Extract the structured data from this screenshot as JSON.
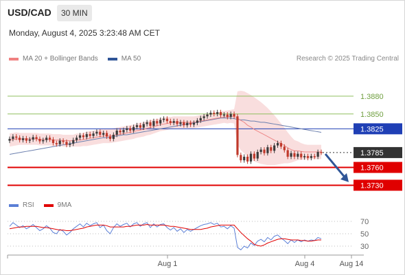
{
  "header": {
    "pair": "USD/CAD",
    "timeframe": "30 MIN"
  },
  "timestamp": "Monday, August 4, 2025 3:23:48 AM CET",
  "legend": {
    "items": [
      {
        "label": "MA 20 + Bollinger Bands",
        "color": "#f08080"
      },
      {
        "label": "MA 50",
        "color": "#2f5597"
      }
    ],
    "credit": "Research © 2025 Trading Central"
  },
  "rsi_legend": {
    "items": [
      {
        "label": "RSI",
        "color": "#5b7fd6"
      },
      {
        "label": "9MA",
        "color": "#e00000"
      }
    ]
  },
  "chart_data": [
    {
      "type": "line",
      "name": "price",
      "x_ticks": [
        "Aug 1",
        "Aug 4",
        "Aug 14"
      ],
      "ylim": [
        1.3712,
        1.3896
      ],
      "levels": [
        {
          "value": 1.388,
          "label": "1.3880",
          "kind": "resistance-green",
          "color": "#8fbf5f"
        },
        {
          "value": 1.385,
          "label": "1.3850",
          "kind": "resistance-green",
          "color": "#8fbf5f"
        },
        {
          "value": 1.3825,
          "label": "1.3825",
          "kind": "pivot",
          "color": "#1f3fb5"
        },
        {
          "value": 1.3785,
          "label": "1.3785",
          "kind": "last-price",
          "color": "#333333"
        },
        {
          "value": 1.376,
          "label": "1.3760",
          "kind": "support",
          "color": "#e00000"
        },
        {
          "value": 1.373,
          "label": "1.3730",
          "kind": "support",
          "color": "#e00000"
        }
      ],
      "close": [
        1.3808,
        1.3812,
        1.381,
        1.3806,
        1.3809,
        1.3805,
        1.3807,
        1.3811,
        1.3808,
        1.3804,
        1.3806,
        1.381,
        1.3807,
        1.3801,
        1.3799,
        1.3805,
        1.3803,
        1.3798,
        1.38,
        1.3806,
        1.381,
        1.3814,
        1.3811,
        1.3816,
        1.3813,
        1.3817,
        1.382,
        1.3815,
        1.3818,
        1.3812,
        1.3808,
        1.3815,
        1.3822,
        1.3819,
        1.3823,
        1.3826,
        1.3822,
        1.3828,
        1.3831,
        1.3827,
        1.3833,
        1.3836,
        1.383,
        1.3838,
        1.3834,
        1.384,
        1.3842,
        1.3838,
        1.3835,
        1.3838,
        1.3833,
        1.3836,
        1.3831,
        1.3835,
        1.3832,
        1.3835,
        1.3839,
        1.3843,
        1.3846,
        1.3849,
        1.3852,
        1.385,
        1.3853,
        1.3848,
        1.3849,
        1.3845,
        1.385,
        1.3846,
        1.3781,
        1.3772,
        1.3778,
        1.377,
        1.3783,
        1.3775,
        1.3786,
        1.379,
        1.3784,
        1.3794,
        1.3788,
        1.3797,
        1.3801,
        1.3795,
        1.3789,
        1.3778,
        1.3784,
        1.3778,
        1.3783,
        1.3777,
        1.3779,
        1.3776,
        1.3779,
        1.3778,
        1.3786,
        1.3785
      ],
      "ma20": [
        1.3806,
        1.3807,
        1.3808,
        1.3808,
        1.3808,
        1.3808,
        1.3808,
        1.3808,
        1.3808,
        1.3807,
        1.3807,
        1.3807,
        1.3807,
        1.3806,
        1.3806,
        1.3806,
        1.3805,
        1.3805,
        1.3805,
        1.3805,
        1.3806,
        1.3806,
        1.3807,
        1.3808,
        1.3809,
        1.381,
        1.3811,
        1.3812,
        1.3813,
        1.3813,
        1.3813,
        1.3814,
        1.3815,
        1.3816,
        1.3817,
        1.3818,
        1.3819,
        1.382,
        1.3822,
        1.3823,
        1.3824,
        1.3826,
        1.3827,
        1.3829,
        1.383,
        1.3832,
        1.3833,
        1.3834,
        1.3835,
        1.3836,
        1.3836,
        1.3836,
        1.3836,
        1.3836,
        1.3836,
        1.3836,
        1.3837,
        1.3838,
        1.3839,
        1.384,
        1.3841,
        1.3842,
        1.3843,
        1.3844,
        1.3845,
        1.3845,
        1.3846,
        1.3846,
        1.3843,
        1.3839,
        1.3836,
        1.3831,
        1.3828,
        1.3824,
        1.3821,
        1.3818,
        1.3815,
        1.3812,
        1.3809,
        1.3806,
        1.3803,
        1.38,
        1.3797,
        1.3793,
        1.379,
        1.3788,
        1.3788,
        1.3787,
        1.3786,
        1.3786,
        1.3786,
        1.3786,
        1.3786,
        1.3786
      ],
      "ma50": [
        1.3782,
        1.3783,
        1.3784,
        1.3785,
        1.3786,
        1.3787,
        1.3788,
        1.3789,
        1.379,
        1.3791,
        1.3792,
        1.3793,
        1.3794,
        1.3795,
        1.3796,
        1.3797,
        1.3798,
        1.3799,
        1.38,
        1.3801,
        1.3802,
        1.3803,
        1.3804,
        1.3805,
        1.3806,
        1.3807,
        1.3808,
        1.3809,
        1.381,
        1.381,
        1.3811,
        1.3812,
        1.3813,
        1.3814,
        1.3815,
        1.3815,
        1.3816,
        1.3817,
        1.3818,
        1.3819,
        1.382,
        1.3821,
        1.3822,
        1.3823,
        1.3824,
        1.3825,
        1.3826,
        1.3827,
        1.3828,
        1.3829,
        1.383,
        1.3831,
        1.3832,
        1.3833,
        1.3834,
        1.3835,
        1.3836,
        1.3837,
        1.3838,
        1.3839,
        1.384,
        1.3841,
        1.3842,
        1.3843,
        1.3843,
        1.3843,
        1.3843,
        1.3842,
        1.3841,
        1.384,
        1.384,
        1.3839,
        1.3838,
        1.3838,
        1.3837,
        1.3836,
        1.3836,
        1.3835,
        1.3834,
        1.3833,
        1.3832,
        1.3831,
        1.383,
        1.3829,
        1.3828,
        1.3827,
        1.3826,
        1.3825,
        1.3824,
        1.3823,
        1.3822,
        1.3821,
        1.382,
        1.3819
      ],
      "band_width": [
        0.0011,
        0.0011,
        0.0011,
        0.001,
        0.001,
        0.001,
        0.001,
        0.001,
        0.001,
        0.001,
        0.001,
        0.001,
        0.001,
        0.001,
        0.001,
        0.001,
        0.001,
        0.001,
        0.001,
        0.001,
        0.0011,
        0.0011,
        0.0011,
        0.0012,
        0.0012,
        0.0012,
        0.0012,
        0.0012,
        0.0012,
        0.0012,
        0.0012,
        0.0012,
        0.0012,
        0.0012,
        0.0012,
        0.0012,
        0.0012,
        0.0012,
        0.0012,
        0.0012,
        0.0012,
        0.0012,
        0.0012,
        0.0012,
        0.0011,
        0.0011,
        0.0011,
        0.0011,
        0.001,
        0.001,
        0.001,
        0.001,
        0.001,
        0.001,
        0.001,
        0.001,
        0.001,
        0.001,
        0.001,
        0.001,
        0.001,
        0.001,
        0.001,
        0.001,
        0.001,
        0.0011,
        0.0011,
        0.0012,
        0.0045,
        0.005,
        0.0052,
        0.0054,
        0.0054,
        0.0054,
        0.0053,
        0.0052,
        0.005,
        0.0048,
        0.0045,
        0.0042,
        0.0038,
        0.0034,
        0.003,
        0.0026,
        0.0022,
        0.0018,
        0.0016,
        0.0014,
        0.0013,
        0.0012,
        0.0012,
        0.0012,
        0.0012,
        0.0012
      ],
      "forecast_arrow": {
        "from": 1.3785,
        "to": 1.3733
      }
    },
    {
      "type": "line",
      "name": "rsi",
      "ylim": [
        20,
        80
      ],
      "y_ticks": [
        70,
        50,
        30
      ],
      "rsi": [
        62,
        68,
        64,
        60,
        63,
        58,
        61,
        65,
        60,
        55,
        58,
        63,
        59,
        52,
        50,
        57,
        54,
        48,
        52,
        58,
        62,
        66,
        61,
        67,
        63,
        66,
        68,
        60,
        64,
        55,
        50,
        60,
        66,
        62,
        65,
        67,
        61,
        66,
        68,
        62,
        66,
        68,
        60,
        66,
        61,
        65,
        66,
        60,
        56,
        60,
        54,
        58,
        52,
        57,
        54,
        57,
        60,
        63,
        65,
        66,
        68,
        65,
        67,
        61,
        62,
        58,
        63,
        59,
        28,
        24,
        30,
        27,
        35,
        31,
        38,
        41,
        37,
        44,
        40,
        46,
        48,
        43,
        39,
        34,
        40,
        36,
        40,
        37,
        40,
        38,
        40,
        39,
        44,
        42
      ],
      "ma9": [
        58,
        59,
        60,
        61,
        61,
        62,
        62,
        62,
        62,
        61,
        60,
        60,
        59,
        58,
        57,
        56,
        56,
        55,
        55,
        56,
        57,
        58,
        59,
        61,
        62,
        63,
        64,
        64,
        64,
        63,
        61,
        61,
        61,
        61,
        61,
        62,
        62,
        63,
        64,
        64,
        64,
        65,
        64,
        64,
        64,
        64,
        64,
        63,
        62,
        62,
        61,
        60,
        59,
        58,
        57,
        57,
        57,
        57,
        58,
        59,
        61,
        62,
        63,
        64,
        64,
        64,
        64,
        64,
        58,
        52,
        47,
        42,
        38,
        33,
        31,
        30,
        32,
        35,
        37,
        39,
        41,
        42,
        42,
        41,
        40,
        40,
        40,
        39,
        39,
        38,
        38,
        39,
        40,
        40
      ]
    }
  ]
}
